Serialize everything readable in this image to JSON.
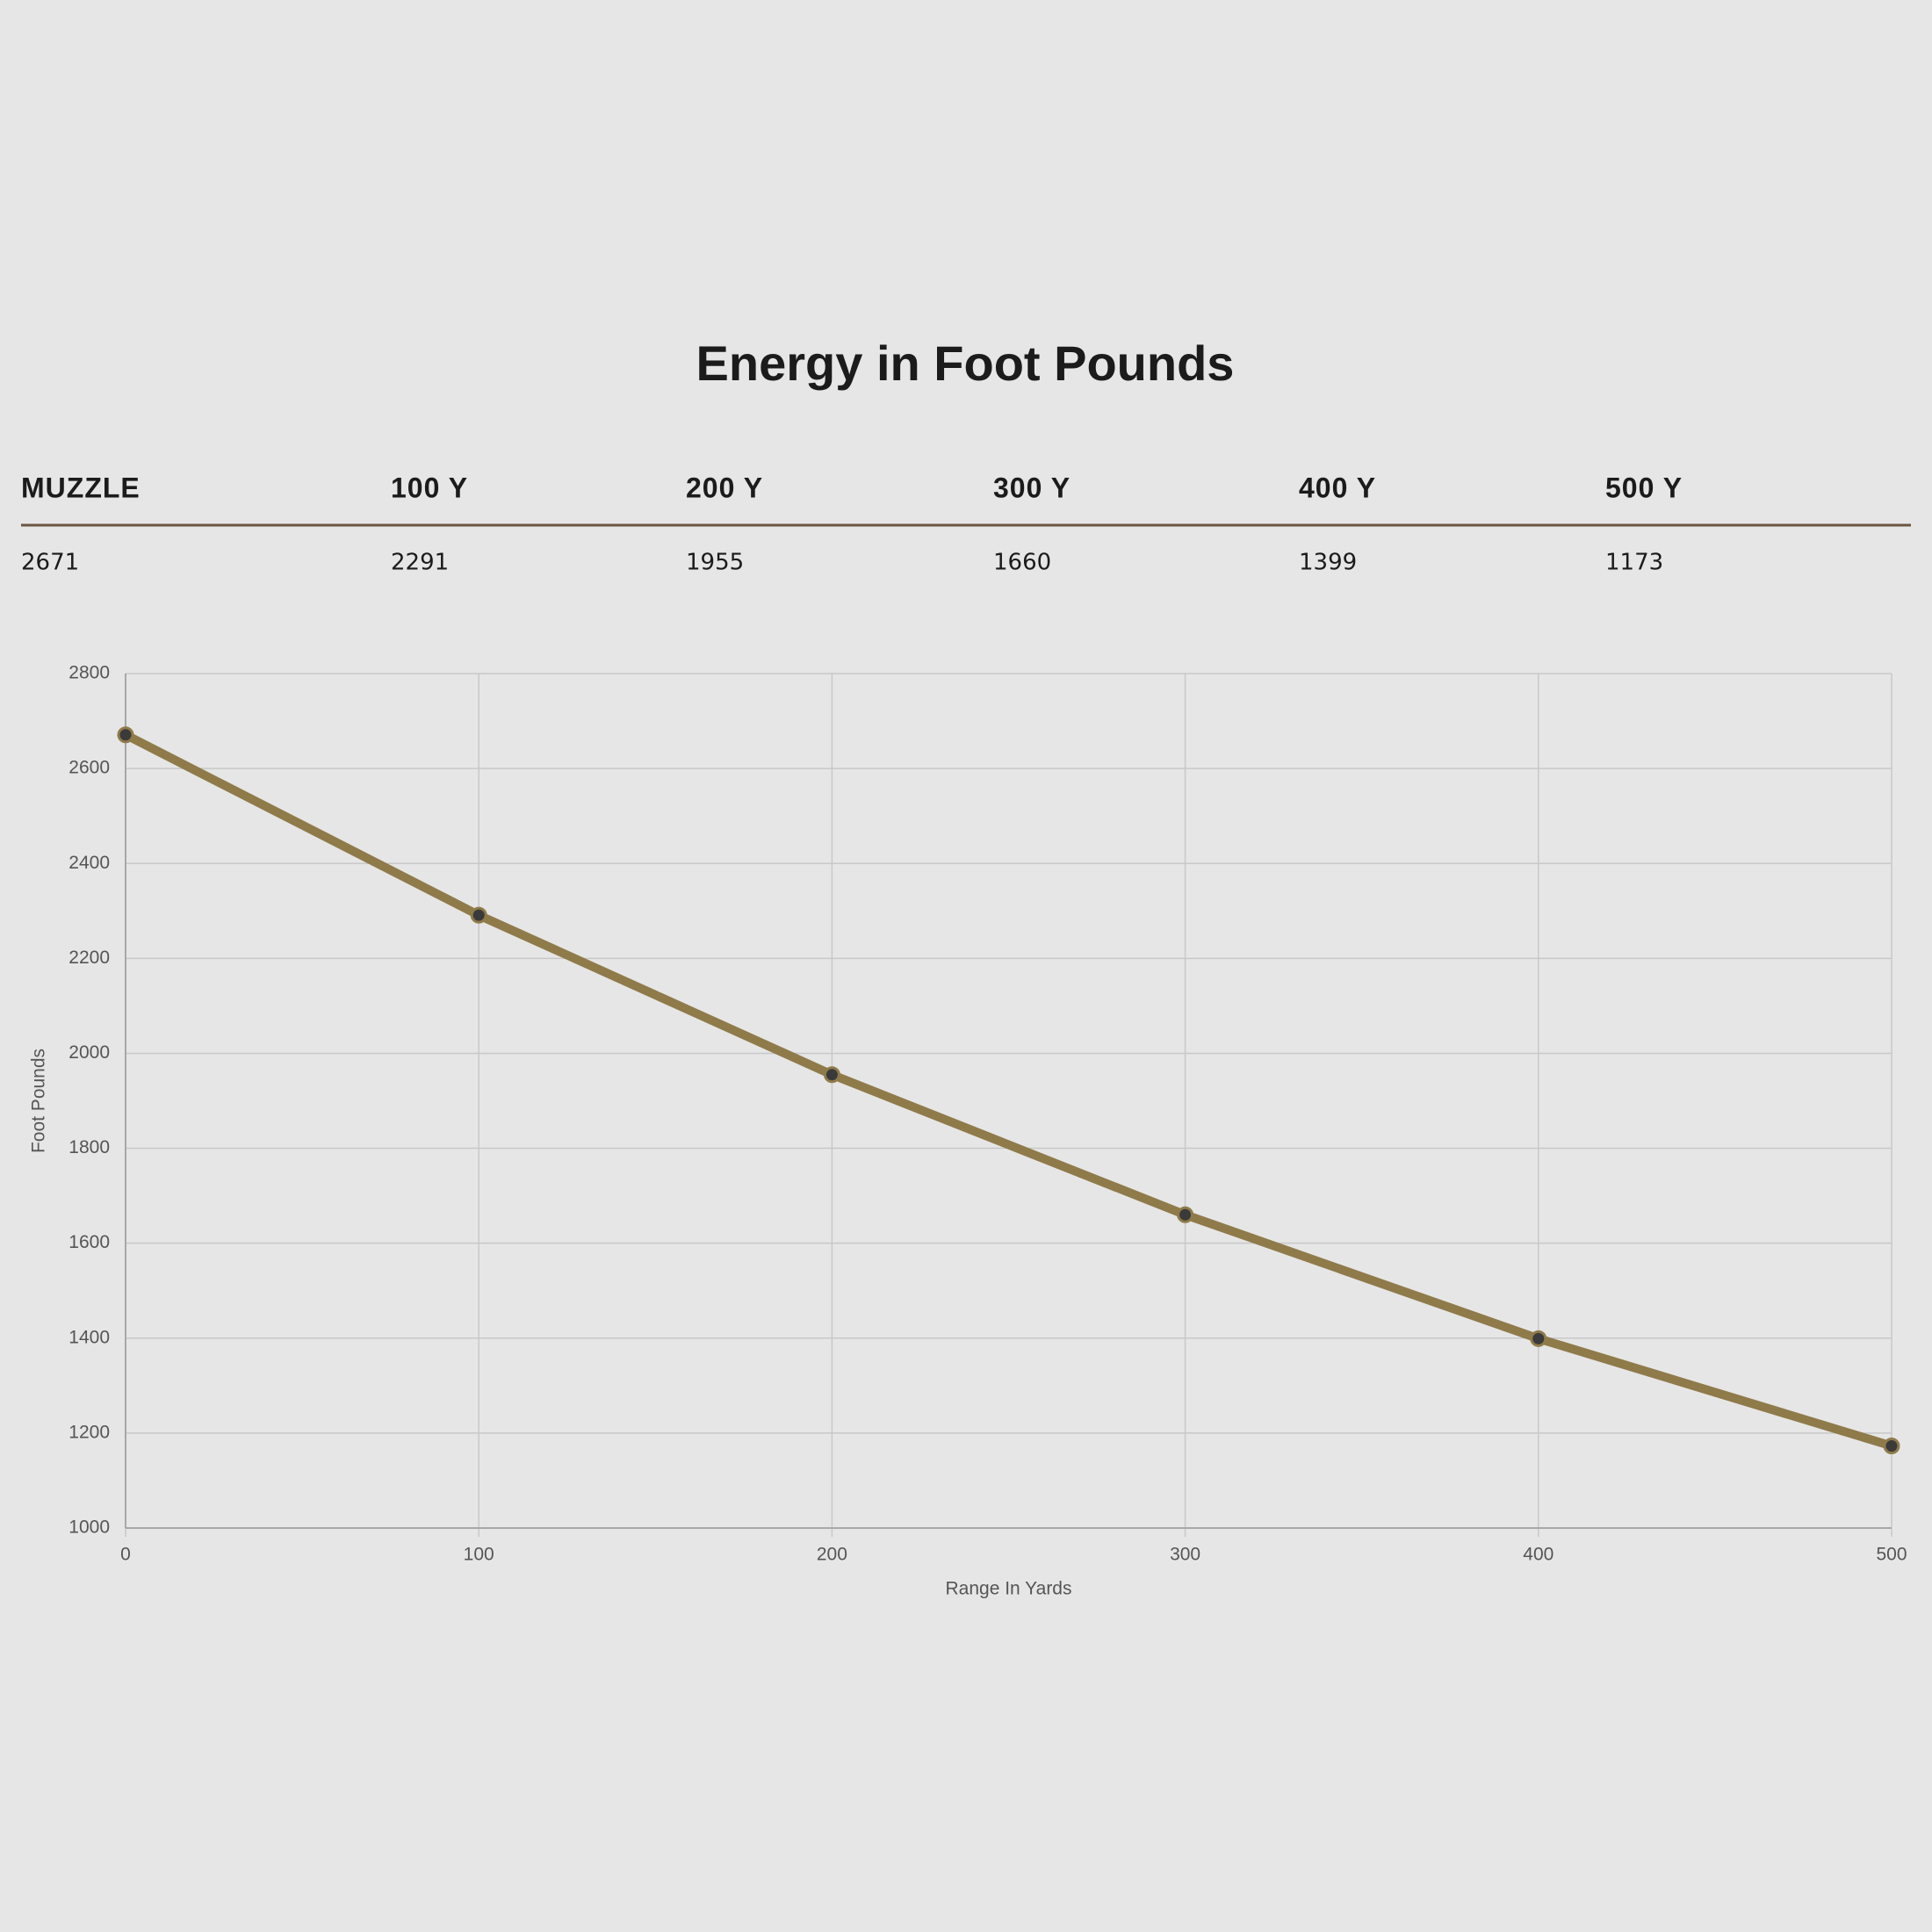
{
  "title": "Energy in Foot Pounds",
  "table": {
    "headers": [
      "MUZZLE",
      "100 Y",
      "200 Y",
      "300 Y",
      "400 Y",
      "500 Y"
    ]
  },
  "chart_data": {
    "type": "line",
    "x": [
      0,
      100,
      200,
      300,
      400,
      500
    ],
    "series": [
      {
        "name": "Foot Pounds",
        "color": "#8f7a4a",
        "values": [
          2671,
          2291,
          1955,
          1660,
          1399,
          1173
        ]
      }
    ],
    "xlim": [
      0,
      500
    ],
    "xticks": [
      0,
      100,
      200,
      300,
      400,
      500
    ],
    "ylim": [
      1000,
      2800
    ],
    "yticks": [
      1000,
      1200,
      1400,
      1600,
      1800,
      2000,
      2200,
      2400,
      2600,
      2800
    ],
    "x_label": "Range In Yards",
    "y_label": "Foot Pounds",
    "grid": true
  }
}
